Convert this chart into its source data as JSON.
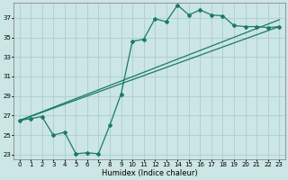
{
  "bg_color": "#cce5e5",
  "grid_color": "#aacfcf",
  "line_color": "#1a7a6a",
  "xlabel": "Humidex (Indice chaleur)",
  "ylim": [
    22.5,
    38.5
  ],
  "xlim": [
    -0.5,
    23.5
  ],
  "yticks": [
    23,
    25,
    27,
    29,
    31,
    33,
    35,
    37
  ],
  "xticks": [
    0,
    1,
    2,
    3,
    4,
    5,
    6,
    7,
    8,
    9,
    10,
    11,
    12,
    13,
    14,
    15,
    16,
    17,
    18,
    19,
    20,
    21,
    22,
    23
  ],
  "line1_x": [
    0,
    1,
    2,
    3,
    4,
    5,
    6,
    7,
    8,
    9,
    10,
    11,
    12,
    13,
    14,
    15,
    16,
    17,
    18,
    19,
    20,
    21,
    22,
    23
  ],
  "line1_y": [
    26.5,
    26.7,
    26.9,
    25.0,
    25.3,
    23.1,
    23.2,
    23.1,
    26.0,
    29.2,
    34.6,
    34.8,
    36.9,
    36.6,
    38.3,
    37.3,
    37.8,
    37.3,
    37.2,
    36.2,
    36.1,
    36.1,
    36.0,
    36.1
  ],
  "line2_x": [
    0,
    23
  ],
  "line2_y": [
    26.5,
    36.8
  ],
  "line3_x": [
    0,
    23
  ],
  "line3_y": [
    26.5,
    36.1
  ],
  "marker": "D",
  "markersize": 2.0,
  "linewidth": 0.9,
  "tick_labelsize": 5.0,
  "xlabel_fontsize": 6.0
}
